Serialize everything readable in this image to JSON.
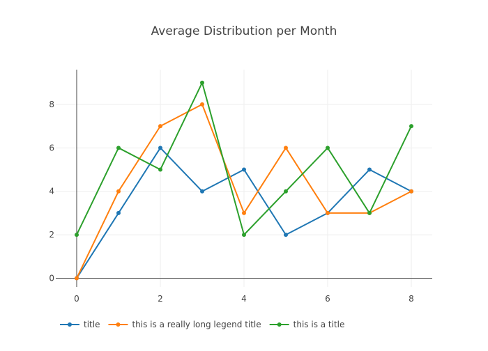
{
  "chart_data": {
    "type": "line",
    "title": "Average Distribution per Month",
    "xlabel": "",
    "ylabel": "",
    "x": [
      0,
      1,
      2,
      3,
      4,
      5,
      6,
      7,
      8
    ],
    "xlim": [
      -0.5,
      8.5
    ],
    "ylim": [
      -0.4,
      9.6
    ],
    "x_ticks": [
      0,
      2,
      4,
      6,
      8
    ],
    "y_ticks": [
      0,
      2,
      4,
      6,
      8
    ],
    "grid": true,
    "legend_position": "bottom-left",
    "series": [
      {
        "name": "title",
        "color": "#1f77b4",
        "values": [
          0,
          3,
          6,
          4,
          5,
          2,
          3,
          5,
          4
        ]
      },
      {
        "name": "this is a really long legend title",
        "color": "#ff7f0e",
        "values": [
          0,
          4,
          7,
          8,
          3,
          6,
          3,
          3,
          4
        ]
      },
      {
        "name": "this is a title",
        "color": "#2ca02c",
        "values": [
          2,
          6,
          5,
          9,
          2,
          4,
          6,
          3,
          7
        ]
      }
    ]
  }
}
